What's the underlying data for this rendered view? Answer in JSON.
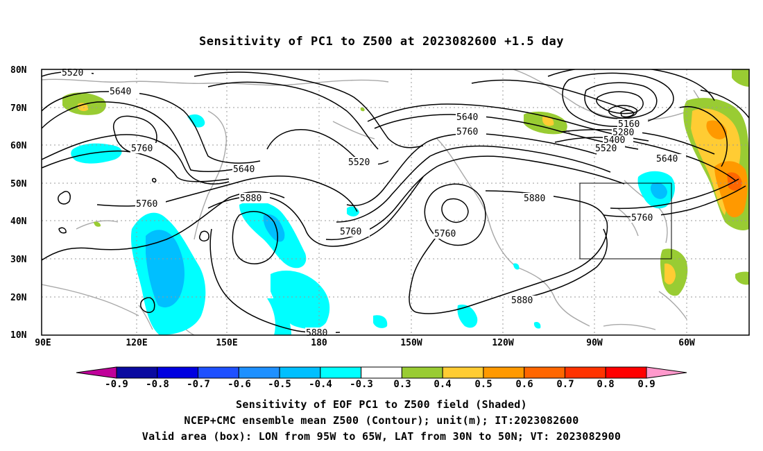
{
  "title": "Sensitivity of PC1 to Z500 at 2023082600 +1.5 day",
  "axes": {
    "lat_labels": [
      "80N",
      "70N",
      "60N",
      "50N",
      "40N",
      "30N",
      "20N",
      "10N"
    ],
    "lon_labels": [
      "90E",
      "120E",
      "150E",
      "180",
      "150W",
      "120W",
      "90W",
      "60W"
    ]
  },
  "contour_labels": {
    "l5520_a": "5520",
    "l5640_a": "5640",
    "l5760_a": "5760",
    "l5640_b": "5640",
    "l5760_b": "5760",
    "l5880_a": "5880",
    "l5760_c": "5760",
    "l5520_b": "5520",
    "l5640_c": "5640",
    "l5760_d": "5760",
    "l5760_e": "5760",
    "l5880_b": "5880",
    "l5160": "5160",
    "l5280": "5280",
    "l5400": "5400",
    "l5520_c": "5520",
    "l5640_d": "5640",
    "l5760_f": "5760",
    "l5880_c": "5880",
    "l5880_d": "5880"
  },
  "colorbar": {
    "labels": [
      "-0.9",
      "-0.8",
      "-0.7",
      "-0.6",
      "-0.5",
      "-0.4",
      "-0.3",
      "0.3",
      "0.4",
      "0.5",
      "0.6",
      "0.7",
      "0.8",
      "0.9"
    ],
    "colors": [
      "#0a0aa0",
      "#0000e0",
      "#1e50ff",
      "#1e90ff",
      "#00bfff",
      "#00ffff",
      "#ffffff",
      "#99cc33",
      "#ffcc33",
      "#ff9900",
      "#ff6600",
      "#ff3300",
      "#ff0000"
    ],
    "left_end_color": "#c0009a",
    "right_end_color": "#ff99cc"
  },
  "valid_box": {
    "lon_from": "95W",
    "lon_to": "65W",
    "lat_from": "30N",
    "lat_to": "50N"
  },
  "footer": {
    "line1": "Sensitivity of EOF PC1 to Z500 field (Shaded)",
    "line2": "NCEP+CMC ensemble mean Z500 (Contour); unit(m); IT:2023082600",
    "line3": "Valid area (box): LON from 95W to 65W, LAT from 30N to 50N; VT: 2023082900"
  }
}
